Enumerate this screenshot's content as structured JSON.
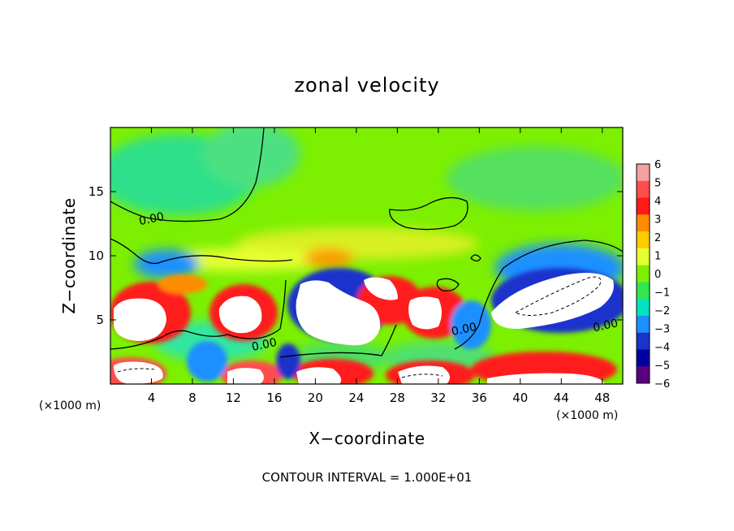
{
  "chart_data": {
    "type": "heatmap",
    "title": "zonal velocity",
    "xlabel": "X−coordinate",
    "ylabel": "Z−coordinate",
    "x_unit_label": "(×1000 m)",
    "x_unit_label_right": "(×1000 m)",
    "xlim": [
      0,
      50
    ],
    "ylim": [
      0,
      20
    ],
    "x_ticks": [
      4,
      8,
      12,
      16,
      20,
      24,
      28,
      32,
      36,
      40,
      44,
      48
    ],
    "x_tick_labels": [
      "4",
      "8",
      "12",
      "16",
      "20",
      "24",
      "28",
      "32",
      "36",
      "40",
      "44",
      "48"
    ],
    "y_ticks": [
      5,
      10,
      15
    ],
    "y_tick_labels": [
      "5",
      "10",
      "15"
    ],
    "footer": "CONTOUR INTERVAL = 1.000E+01",
    "contour_labels": [
      {
        "text": "0.00",
        "x": 4,
        "y": 12.9
      },
      {
        "text": "0.00",
        "x": 15,
        "y": 3.1
      },
      {
        "text": "0.00",
        "x": 34.5,
        "y": 4.3
      },
      {
        "text": "0.00",
        "x": 48.3,
        "y": 4.6
      }
    ],
    "colorbar": {
      "levels": [
        6,
        5,
        4,
        3,
        2,
        1,
        0,
        -1,
        -2,
        -3,
        -4,
        -5,
        -6
      ],
      "labels": [
        "6",
        "5",
        "4",
        "3",
        "2",
        "1",
        "0",
        "−1",
        "−2",
        "−3",
        "−4",
        "−5",
        "−6"
      ],
      "colors": [
        "#f4a0a0",
        "#ff4d4d",
        "#ff1a1a",
        "#ff8c00",
        "#ffcc00",
        "#e6ff33",
        "#7cf000",
        "#33e64d",
        "#00e5c0",
        "#1e90ff",
        "#1a33cc",
        "#0000a0",
        "#5a0080"
      ]
    },
    "background_color": "#7cf000",
    "saturated_color": "#ffffff"
  }
}
